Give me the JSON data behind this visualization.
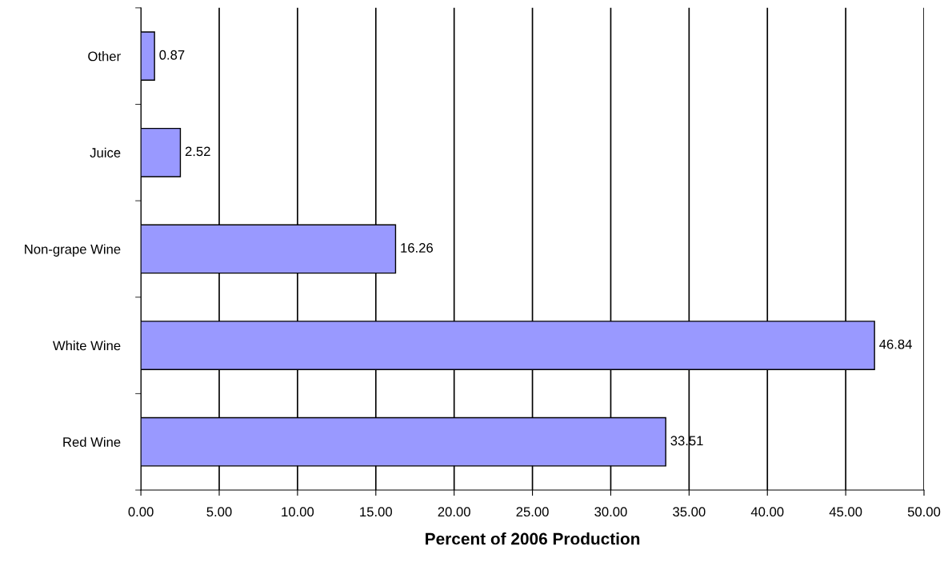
{
  "chart_data": {
    "type": "bar",
    "orientation": "horizontal",
    "xlabel": "Percent of 2006 Production",
    "categories": [
      "Other",
      "Juice",
      "Non-grape Wine",
      "White Wine",
      "Red Wine"
    ],
    "values": [
      0.87,
      2.52,
      16.26,
      46.84,
      33.51
    ],
    "color": "#9999ff",
    "xlim": [
      0,
      50
    ],
    "xticks": [
      {
        "value": 0,
        "label": "0.00"
      },
      {
        "value": 5,
        "label": "5.00"
      },
      {
        "value": 10,
        "label": "10.00"
      },
      {
        "value": 15,
        "label": "15.00"
      },
      {
        "value": 20,
        "label": "20.00"
      },
      {
        "value": 25,
        "label": "25.00"
      },
      {
        "value": 30,
        "label": "30.00"
      },
      {
        "value": 35,
        "label": "35.00"
      },
      {
        "value": 40,
        "label": "40.00"
      },
      {
        "value": 45,
        "label": "45.00"
      },
      {
        "value": 50,
        "label": "50.00"
      }
    ],
    "grid": "x",
    "data_labels": true,
    "legend": false
  }
}
